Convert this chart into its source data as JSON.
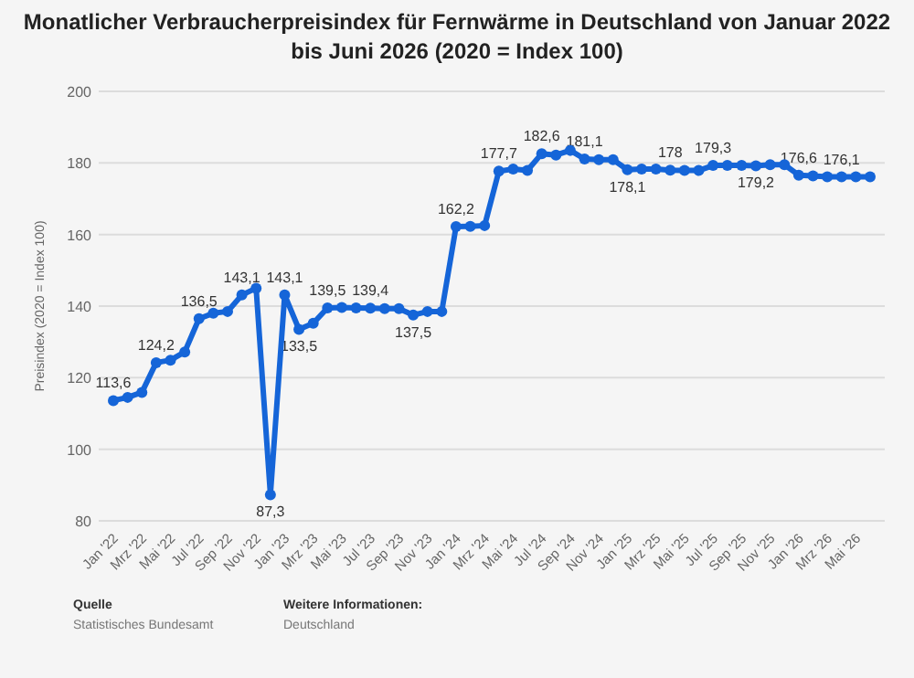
{
  "chart_data": {
    "type": "line",
    "title": "Monatlicher Verbraucherpreisindex für Fernwärme in Deutschland von Januar 2022 bis Juni 2026 (2020 = Index 100)",
    "ylabel": "Preisindex (2020 = Index 100)",
    "categories": [
      "Jan '22",
      null,
      "Mrz '22",
      null,
      "Mai '22",
      null,
      "Jul '22",
      null,
      "Sep '22",
      null,
      "Nov '22",
      null,
      "Jan '23",
      null,
      "Mrz '23",
      null,
      "Mai '23",
      null,
      "Jul '23",
      null,
      "Sep '23",
      null,
      "Nov '23",
      null,
      "Jan '24",
      null,
      "Mrz '24",
      null,
      "Mai '24",
      null,
      "Jul '24",
      null,
      "Sep '24",
      null,
      "Nov '24",
      null,
      "Jan '25",
      null,
      "Mrz '25",
      null,
      "Mai '25",
      null,
      "Jul '25",
      null,
      "Sep '25",
      null,
      "Nov '25",
      null,
      "Jan '26",
      null,
      "Mrz '26",
      null,
      "Mai '26",
      null
    ],
    "series": [
      {
        "color": "#1565d8",
        "values": [
          113.6,
          114.5,
          115.9,
          124.2,
          124.9,
          127.2,
          136.5,
          138.0,
          138.5,
          143.1,
          145.0,
          87.3,
          143.1,
          133.5,
          135.2,
          139.5,
          139.6,
          139.5,
          139.4,
          139.3,
          139.3,
          137.5,
          138.5,
          138.5,
          162.2,
          162.3,
          162.5,
          177.7,
          178.3,
          177.9,
          182.6,
          182.2,
          183.5,
          181.1,
          180.9,
          180.9,
          178.1,
          178.3,
          178.3,
          178,
          177.9,
          177.9,
          179.3,
          179.3,
          179.3,
          179.2,
          179.5,
          179.5,
          176.6,
          176.4,
          176.1,
          176.1,
          176.1,
          176.1
        ],
        "value_labels": [
          "113,6",
          null,
          null,
          "124,2",
          null,
          null,
          "136,5",
          null,
          null,
          "143,1",
          null,
          "87,3",
          "143,1",
          "133,5",
          null,
          "139,5",
          null,
          null,
          "139,4",
          null,
          null,
          "137,5",
          null,
          null,
          "162,2",
          null,
          null,
          "177,7",
          null,
          null,
          "182,6",
          null,
          null,
          "181,1",
          null,
          null,
          "178,1",
          null,
          null,
          "178",
          null,
          null,
          "179,3",
          null,
          null,
          "179,2",
          null,
          null,
          "176,6",
          null,
          null,
          "176,1",
          null,
          null
        ]
      }
    ],
    "ylim": [
      80,
      200
    ],
    "yticks": [
      80,
      100,
      120,
      140,
      160,
      180,
      200
    ],
    "grid": "y",
    "marker": "circle",
    "line_style": "solid",
    "annotations": [
      "Quelle",
      "Statistisches Bundesamt",
      "Weitere Informationen:",
      "Deutschland"
    ]
  }
}
